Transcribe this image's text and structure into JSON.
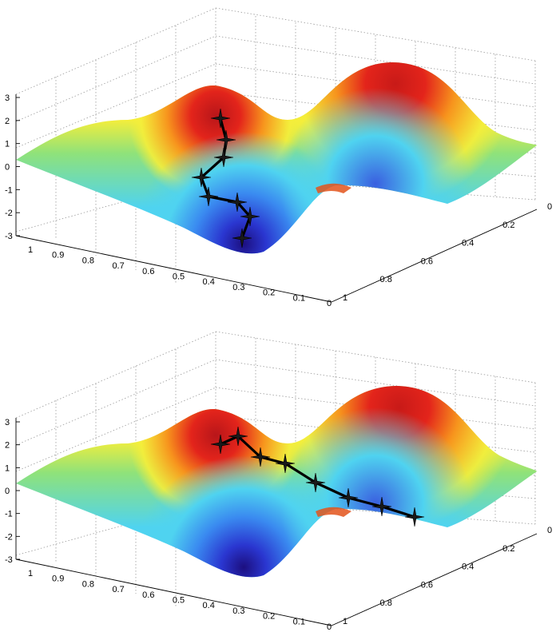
{
  "chart_data": [
    {
      "type": "surface",
      "z_ticks": [
        "3",
        "2",
        "1",
        "0",
        "-1",
        "-2",
        "-3"
      ],
      "x_ticks": [
        "1",
        "0.9",
        "0.8",
        "0.7",
        "0.6",
        "0.5",
        "0.4",
        "0.3",
        "0.2",
        "0.1",
        "0"
      ],
      "y_ticks": [
        "0",
        "0.2",
        "0.4",
        "0.6",
        "0.8",
        "1"
      ],
      "zlim": [
        -3,
        3
      ],
      "xlim": [
        0,
        1
      ],
      "ylim": [
        0,
        1
      ],
      "grid": true,
      "colormap": "jet",
      "path": [
        {
          "z": 2.0
        },
        {
          "z": 1.1
        },
        {
          "z": 0.3
        },
        {
          "z": -0.5
        },
        {
          "z": -1.3
        },
        {
          "z": -1.4
        },
        {
          "z": -2.1
        },
        {
          "z": -3.0
        }
      ]
    },
    {
      "type": "surface",
      "z_ticks": [
        "3",
        "2",
        "1",
        "0",
        "-1",
        "-2",
        "-3"
      ],
      "x_ticks": [
        "1",
        "0.9",
        "0.8",
        "0.7",
        "0.6",
        "0.5",
        "0.4",
        "0.3",
        "0.2",
        "0.1",
        "0"
      ],
      "y_ticks": [
        "0",
        "0.2",
        "0.4",
        "0.6",
        "0.8",
        "1"
      ],
      "zlim": [
        -3,
        3
      ],
      "xlim": [
        0,
        1
      ],
      "ylim": [
        0,
        1
      ],
      "grid": true,
      "colormap": "jet",
      "path": [
        {
          "z": 2.1
        },
        {
          "z": 2.3
        },
        {
          "z": 1.5
        },
        {
          "z": 1.2
        },
        {
          "z": 0.4
        },
        {
          "z": -0.2
        },
        {
          "z": -0.6
        },
        {
          "z": -1.1
        }
      ]
    }
  ],
  "colors": {
    "red": "#e3241b",
    "orange": "#f7941d",
    "yellow": "#f5ee3a",
    "green": "#8fe27a",
    "cyan": "#4fd3f0",
    "blue": "#3a5fe0",
    "navy": "#2a1a9a"
  }
}
